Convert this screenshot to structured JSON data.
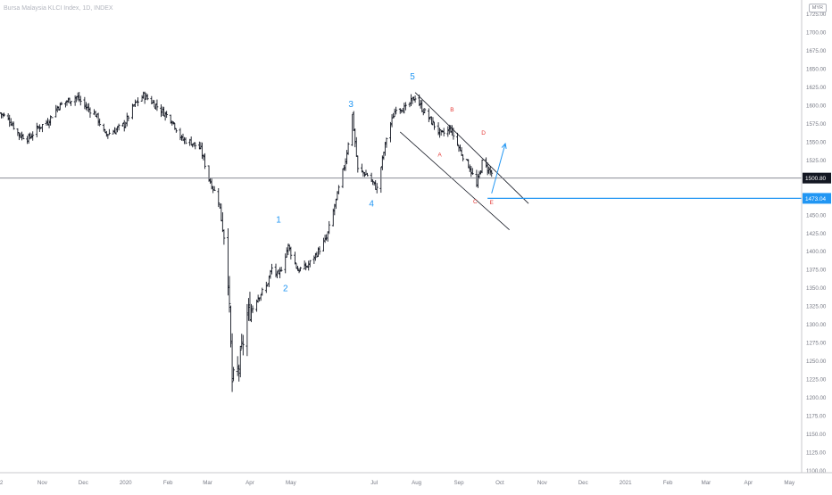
{
  "header": {
    "symbol_title": "Bursa Malaysia KLCI Index, 1D, INDEX",
    "currency": "MYR"
  },
  "colors": {
    "background": "#ffffff",
    "bars": "#131722",
    "axis_text": "#787b86",
    "wave_label": "#2196f3",
    "abcde_label": "#e53935",
    "channel": "#131722",
    "price_line": "#787b86",
    "target_line": "#2196f3",
    "last_badge": "#131722",
    "target_badge": "#2196f3"
  },
  "chart_data": {
    "type": "ohlc",
    "ylim": [
      1100,
      1725
    ],
    "y_ticks": [
      1100,
      1125,
      1150,
      1175,
      1200,
      1225,
      1250,
      1275,
      1300,
      1325,
      1350,
      1375,
      1400,
      1425,
      1450,
      1475,
      1500,
      1525,
      1550,
      1575,
      1600,
      1625,
      1650,
      1675,
      1700,
      1725
    ],
    "y_tick_labels": [
      "1100.00",
      "1125.00",
      "1150.00",
      "1175.00",
      "1200.00",
      "1225.00",
      "1250.00",
      "1275.00",
      "1300.00",
      "1325.00",
      "1350.00",
      "1375.00",
      "1400.00",
      "1425.00",
      "1450.00",
      "1475.00",
      "1500.00",
      "1525.00",
      "1550.00",
      "1575.00",
      "1600.00",
      "1625.00",
      "1650.00",
      "1675.00",
      "1700.00",
      "1725.00"
    ],
    "x_labels": [
      {
        "label": "2",
        "date": "2019-10-02"
      },
      {
        "label": "Nov",
        "date": "2019-11-01"
      },
      {
        "label": "Dec",
        "date": "2019-12-01"
      },
      {
        "label": "2020",
        "date": "2020-01-01"
      },
      {
        "label": "Feb",
        "date": "2020-02-01"
      },
      {
        "label": "Mar",
        "date": "2020-03-01"
      },
      {
        "label": "Apr",
        "date": "2020-04-01"
      },
      {
        "label": "May",
        "date": "2020-05-01"
      },
      {
        "label": "Jul",
        "date": "2020-07-01"
      },
      {
        "label": "Aug",
        "date": "2020-08-01"
      },
      {
        "label": "Sep",
        "date": "2020-09-01"
      },
      {
        "label": "Oct",
        "date": "2020-10-01"
      },
      {
        "label": "Nov",
        "date": "2020-11-01"
      },
      {
        "label": "Dec",
        "date": "2020-12-01"
      },
      {
        "label": "2021",
        "date": "2021-01-01"
      },
      {
        "label": "Feb",
        "date": "2021-02-01"
      },
      {
        "label": "Mar",
        "date": "2021-03-01"
      },
      {
        "label": "Apr",
        "date": "2021-04-01"
      },
      {
        "label": "May",
        "date": "2021-05-01"
      }
    ],
    "x_range": [
      "2019-10-01",
      "2021-05-10"
    ],
    "series": [
      {
        "name": "",
        "close_path": [
          [
            "2019-10-01",
            1590
          ],
          [
            "2019-10-08",
            1580
          ],
          [
            "2019-10-15",
            1560
          ],
          [
            "2019-10-22",
            1555
          ],
          [
            "2019-10-29",
            1570
          ],
          [
            "2019-11-05",
            1578
          ],
          [
            "2019-11-12",
            1598
          ],
          [
            "2019-11-19",
            1606
          ],
          [
            "2019-11-26",
            1612
          ],
          [
            "2019-12-03",
            1598
          ],
          [
            "2019-12-10",
            1588
          ],
          [
            "2019-12-17",
            1560
          ],
          [
            "2019-12-24",
            1566
          ],
          [
            "2019-12-31",
            1574
          ],
          [
            "2020-01-07",
            1600
          ],
          [
            "2020-01-14",
            1614
          ],
          [
            "2020-01-21",
            1604
          ],
          [
            "2020-01-28",
            1592
          ],
          [
            "2020-02-04",
            1580
          ],
          [
            "2020-02-11",
            1554
          ],
          [
            "2020-02-18",
            1550
          ],
          [
            "2020-02-25",
            1540
          ],
          [
            "2020-03-02",
            1500
          ],
          [
            "2020-03-09",
            1470
          ],
          [
            "2020-03-13",
            1425
          ],
          [
            "2020-03-16",
            1365
          ],
          [
            "2020-03-19",
            1222
          ],
          [
            "2020-03-24",
            1242
          ],
          [
            "2020-03-30",
            1312
          ],
          [
            "2020-04-06",
            1336
          ],
          [
            "2020-04-13",
            1352
          ],
          [
            "2020-04-17",
            1377
          ],
          [
            "2020-04-22",
            1366
          ],
          [
            "2020-04-29",
            1408
          ],
          [
            "2020-05-06",
            1375
          ],
          [
            "2020-05-13",
            1380
          ],
          [
            "2020-05-20",
            1398
          ],
          [
            "2020-05-27",
            1418
          ],
          [
            "2020-06-03",
            1470
          ],
          [
            "2020-06-10",
            1525
          ],
          [
            "2020-06-15",
            1587
          ],
          [
            "2020-06-19",
            1512
          ],
          [
            "2020-06-26",
            1505
          ],
          [
            "2020-07-03",
            1486
          ],
          [
            "2020-07-10",
            1556
          ],
          [
            "2020-07-17",
            1598
          ],
          [
            "2020-07-24",
            1596
          ],
          [
            "2020-07-31",
            1612
          ],
          [
            "2020-08-05",
            1596
          ],
          [
            "2020-08-12",
            1578
          ],
          [
            "2020-08-19",
            1560
          ],
          [
            "2020-08-26",
            1568
          ],
          [
            "2020-09-02",
            1538
          ],
          [
            "2020-09-09",
            1515
          ],
          [
            "2020-09-14",
            1490
          ],
          [
            "2020-09-18",
            1522
          ],
          [
            "2020-09-23",
            1512
          ],
          [
            "2020-09-28",
            1501
          ]
        ]
      }
    ],
    "last_price": 1500.8,
    "last_price_label": "1500.80",
    "target_price": 1473.04,
    "target_price_label": "1473.04",
    "wave_labels": [
      {
        "text": "1",
        "date": "2020-04-22",
        "price": 1440
      },
      {
        "text": "2",
        "date": "2020-04-27",
        "price": 1346
      },
      {
        "text": "3",
        "date": "2020-06-14",
        "price": 1598
      },
      {
        "text": "4",
        "date": "2020-06-29",
        "price": 1462
      },
      {
        "text": "5",
        "date": "2020-07-29",
        "price": 1636
      }
    ],
    "abcde_labels": [
      {
        "text": "A",
        "date": "2020-08-18",
        "price": 1530
      },
      {
        "text": "B",
        "date": "2020-08-27",
        "price": 1592
      },
      {
        "text": "C",
        "date": "2020-09-13",
        "price": 1466
      },
      {
        "text": "D",
        "date": "2020-09-19",
        "price": 1560
      },
      {
        "text": "E",
        "date": "2020-09-25",
        "price": 1465
      }
    ],
    "channel_upper": [
      [
        "2020-07-31",
        1618
      ],
      [
        "2020-10-22",
        1466
      ]
    ],
    "channel_lower": [
      [
        "2020-07-20",
        1564
      ],
      [
        "2020-10-08",
        1430
      ]
    ],
    "target_hline_start": "2020-09-22",
    "projection_arrow": [
      [
        "2020-09-25",
        1480
      ],
      [
        "2020-10-05",
        1548
      ]
    ],
    "grid": false,
    "legend": "none"
  }
}
